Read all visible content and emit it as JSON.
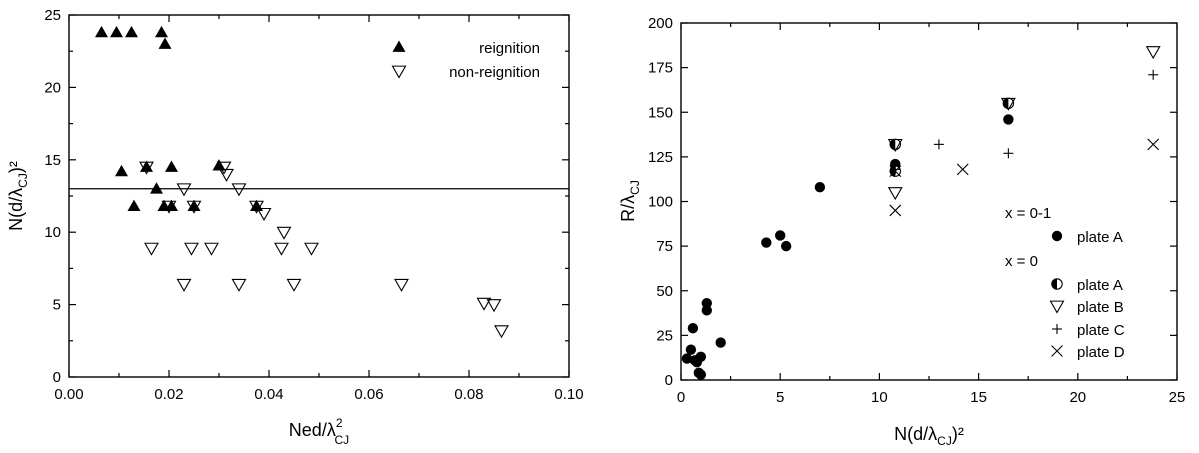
{
  "chart_data": [
    {
      "type": "scatter",
      "xlabel": {
        "main": "Ned/λ",
        "sup": "2",
        "sub": "CJ"
      },
      "ylabel": {
        "main": "N(d/λ",
        "sub": "CJ",
        "tail": ")²"
      },
      "xlim": [
        0,
        0.1
      ],
      "ylim": [
        0,
        25
      ],
      "xticks": [
        0.0,
        0.02,
        0.04,
        0.06,
        0.08,
        0.1
      ],
      "xtick_labels": [
        "0.00",
        "0.02",
        "0.04",
        "0.06",
        "0.08",
        "0.10"
      ],
      "yticks": [
        0,
        5,
        10,
        15,
        20,
        25
      ],
      "ytick_labels": [
        "0",
        "5",
        "10",
        "15",
        "20",
        "25"
      ],
      "grid": false,
      "legend_position": "top-right",
      "reference_line": {
        "y": 13
      },
      "series": [
        {
          "name": "reignition",
          "marker": "filled-triangle-up",
          "points": [
            [
              0.0065,
              23.8
            ],
            [
              0.0095,
              23.8
            ],
            [
              0.0125,
              23.8
            ],
            [
              0.0185,
              23.8
            ],
            [
              0.0192,
              23.0
            ],
            [
              0.0105,
              14.2
            ],
            [
              0.0155,
              14.5
            ],
            [
              0.0205,
              14.5
            ],
            [
              0.03,
              14.6
            ],
            [
              0.0175,
              13.0
            ],
            [
              0.013,
              11.8
            ],
            [
              0.019,
              11.8
            ],
            [
              0.0205,
              11.8
            ],
            [
              0.025,
              11.8
            ],
            [
              0.0375,
              11.8
            ]
          ]
        },
        {
          "name": "non-reignition",
          "marker": "open-triangle-down",
          "points": [
            [
              0.0155,
              14.5
            ],
            [
              0.031,
              14.5
            ],
            [
              0.0315,
              14.0
            ],
            [
              0.023,
              13.0
            ],
            [
              0.034,
              13.0
            ],
            [
              0.02,
              11.8
            ],
            [
              0.025,
              11.8
            ],
            [
              0.0375,
              11.8
            ],
            [
              0.039,
              11.3
            ],
            [
              0.043,
              10.0
            ],
            [
              0.0165,
              8.9
            ],
            [
              0.0245,
              8.9
            ],
            [
              0.0285,
              8.9
            ],
            [
              0.0425,
              8.9
            ],
            [
              0.0485,
              8.9
            ],
            [
              0.023,
              6.4
            ],
            [
              0.034,
              6.4
            ],
            [
              0.045,
              6.4
            ],
            [
              0.0665,
              6.4
            ],
            [
              0.083,
              5.1
            ],
            [
              0.085,
              5.0
            ],
            [
              0.0865,
              3.2
            ]
          ]
        }
      ]
    },
    {
      "type": "scatter",
      "xlabel": {
        "main": "N(d/λ",
        "sub": "CJ",
        "tail": ")²"
      },
      "ylabel": {
        "main": "R/λ",
        "sub": "CJ"
      },
      "xlim": [
        0,
        25
      ],
      "ylim": [
        0,
        200
      ],
      "xticks": [
        0,
        5,
        10,
        15,
        20,
        25
      ],
      "xtick_labels": [
        "0",
        "5",
        "10",
        "15",
        "20",
        "25"
      ],
      "yticks": [
        0,
        25,
        50,
        75,
        100,
        125,
        150,
        175,
        200
      ],
      "ytick_labels": [
        "0",
        "25",
        "50",
        "75",
        "100",
        "125",
        "150",
        "175",
        "200"
      ],
      "grid": false,
      "legend_position": "bottom-right",
      "legend_groups": [
        "x = 0-1",
        "x = 0"
      ],
      "series": [
        {
          "name": "plate A",
          "group": "x = 0-1",
          "marker": "filled-circle",
          "points": [
            [
              0.3,
              12
            ],
            [
              0.5,
              17
            ],
            [
              0.6,
              29
            ],
            [
              0.7,
              11
            ],
            [
              0.8,
              10
            ],
            [
              1.0,
              13
            ],
            [
              0.9,
              4
            ],
            [
              1.0,
              3
            ],
            [
              1.3,
              43
            ],
            [
              1.3,
              39
            ],
            [
              2.0,
              21
            ],
            [
              4.3,
              77
            ],
            [
              5.0,
              81
            ],
            [
              5.3,
              75
            ],
            [
              7.0,
              108
            ],
            [
              10.8,
              121
            ],
            [
              10.8,
              118
            ],
            [
              16.5,
              146
            ]
          ]
        },
        {
          "name": "plate A",
          "group": "x = 0",
          "marker": "half-filled-circle",
          "points": [
            [
              10.8,
              132
            ],
            [
              10.8,
              117
            ],
            [
              16.5,
              155
            ]
          ]
        },
        {
          "name": "plate B",
          "group": "x = 0",
          "marker": "open-triangle-down",
          "points": [
            [
              10.8,
              132
            ],
            [
              10.8,
              105
            ],
            [
              16.5,
              155
            ],
            [
              23.8,
              184
            ]
          ]
        },
        {
          "name": "plate C",
          "group": "x = 0",
          "marker": "plus",
          "points": [
            [
              10.8,
              118
            ],
            [
              13.0,
              132
            ],
            [
              16.5,
              127
            ],
            [
              23.8,
              171
            ]
          ]
        },
        {
          "name": "plate D",
          "group": "x = 0",
          "marker": "cross",
          "points": [
            [
              10.8,
              95
            ],
            [
              10.8,
              117
            ],
            [
              14.2,
              118
            ],
            [
              23.8,
              132
            ]
          ]
        }
      ]
    }
  ]
}
